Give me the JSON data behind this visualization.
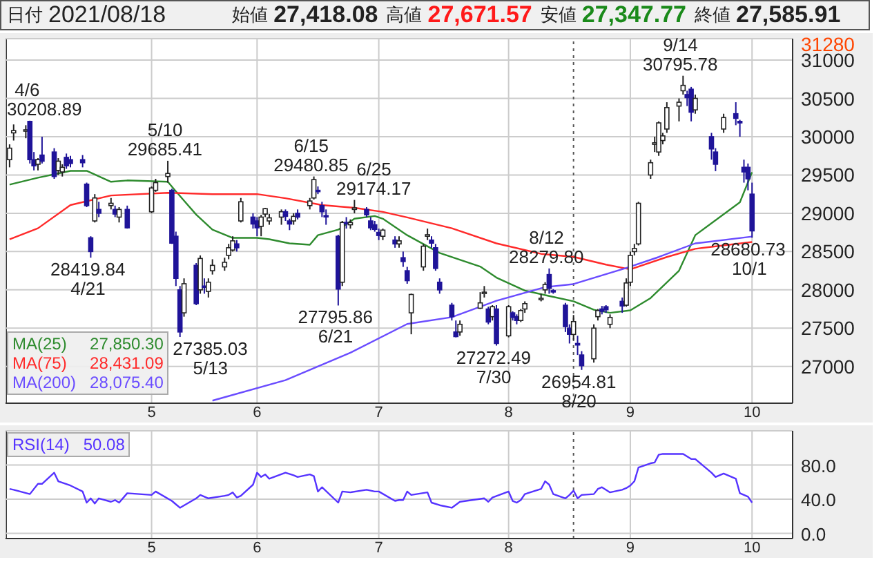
{
  "chart_data": [
    {
      "type": "candlestick",
      "title": "日付 2021/08/18 始値 27,418.08 高値 27,671.57 安値 27,347.77 終値 27,585.91",
      "colors": [
        "#ffffff",
        "#ffffff",
        "#ffffff",
        "#1f1499",
        "#1f1499",
        "#ffffff",
        "#1f1499",
        "#1f1499",
        "#ffffff",
        "#ffffff",
        "#1f1499",
        "#1f1499",
        "#1f1499",
        "#1f1499",
        "#1f1499",
        "#ffffff",
        "#1f1499",
        "#ffffff",
        "#1f1499",
        "#ffffff",
        "#1f1499",
        "#ffffff",
        "#ffffff",
        "#ffffff",
        "#1f1499",
        "#1f1499",
        "#1f1499",
        "#ffffff",
        "#1f1499",
        "#ffffff",
        "#1f1499",
        "#ffffff",
        "#ffffff",
        "#ffffff",
        "#ffffff",
        "#ffffff",
        "#1f1499",
        "#ffffff",
        "#1f1499",
        "#1f1499",
        "#ffffff",
        "#ffffff",
        "#ffffff",
        "#ffffff",
        "#1f1499",
        "#1f1499",
        "#ffffff",
        "#1f1499",
        "#ffffff",
        "#ffffff",
        "#1f1499",
        "#1f1499",
        "#1f1499",
        "#1f1499",
        "#ffffff",
        "#1f1499",
        "#ffffff",
        "#ffffff",
        "#1f1499",
        "#1f1499",
        "#1f1499",
        "#1f1499",
        "#ffffff",
        "#1f1499",
        "#ffffff",
        "#1f1499",
        "#1f1499",
        "#ffffff",
        "#ffffff",
        "#ffffff",
        "#1f1499",
        "#1f1499",
        "#1f1499",
        "#1f1499",
        "#1f1499",
        "#ffffff",
        "#ffffff",
        "#ffffff",
        "#1f1499",
        "#ffffff",
        "#1f1499",
        "#ffffff",
        "#1f1499",
        "#1f1499",
        "#ffffff",
        "#ffffff",
        "#ffffff",
        "#ffffff",
        "#1f1499",
        "#1f1499",
        "#1f1499",
        "#1f1499",
        "#ffffff",
        "#1f1499",
        "#1f1499",
        "#ffffff",
        "#ffffff",
        "#1f1499",
        "#1f1499",
        "#ffffff",
        "#1f1499",
        "#ffffff",
        "#ffffff",
        "#ffffff",
        "#ffffff",
        "#ffffff",
        "#ffffff",
        "#ffffff",
        "#ffffff",
        "#ffffff",
        "#ffffff",
        "#ffffff",
        "#1f1499",
        "#1f1499",
        "#ffffff",
        "#1f1499",
        "#1f1499",
        "#ffffff",
        "#1f1499",
        "#1f1499",
        "#1f1499",
        "#1f1499",
        "#1f1499"
      ],
      "x": [
        "2021-04-01",
        "2021-04-02",
        "2021-04-05",
        "2021-04-06",
        "2021-04-07",
        "2021-04-08",
        "2021-04-09",
        "2021-04-12",
        "2021-04-13",
        "2021-04-14",
        "2021-04-15",
        "2021-04-16",
        "2021-04-19",
        "2021-04-20",
        "2021-04-21",
        "2021-04-22",
        "2021-04-23",
        "2021-04-26",
        "2021-04-27",
        "2021-04-28",
        "2021-04-30",
        "2021-05-06",
        "2021-05-07",
        "2021-05-10",
        "2021-05-11",
        "2021-05-12",
        "2021-05-13",
        "2021-05-14",
        "2021-05-17",
        "2021-05-18",
        "2021-05-19",
        "2021-05-20",
        "2021-05-21",
        "2021-05-24",
        "2021-05-25",
        "2021-05-26",
        "2021-05-27",
        "2021-05-28",
        "2021-05-31",
        "2021-06-01",
        "2021-06-02",
        "2021-06-03",
        "2021-06-04",
        "2021-06-07",
        "2021-06-08",
        "2021-06-09",
        "2021-06-10",
        "2021-06-11",
        "2021-06-14",
        "2021-06-15",
        "2021-06-16",
        "2021-06-17",
        "2021-06-18",
        "2021-06-21",
        "2021-06-22",
        "2021-06-23",
        "2021-06-24",
        "2021-06-25",
        "2021-06-28",
        "2021-06-29",
        "2021-06-30",
        "2021-07-01",
        "2021-07-02",
        "2021-07-05",
        "2021-07-06",
        "2021-07-07",
        "2021-07-08",
        "2021-07-09",
        "2021-07-12",
        "2021-07-13",
        "2021-07-14",
        "2021-07-15",
        "2021-07-16",
        "2021-07-19",
        "2021-07-20",
        "2021-07-21",
        "2021-07-26",
        "2021-07-27",
        "2021-07-28",
        "2021-07-29",
        "2021-07-30",
        "2021-08-02",
        "2021-08-03",
        "2021-08-04",
        "2021-08-05",
        "2021-08-06",
        "2021-08-10",
        "2021-08-11",
        "2021-08-12",
        "2021-08-13",
        "2021-08-16",
        "2021-08-17",
        "2021-08-18",
        "2021-08-19",
        "2021-08-20",
        "2021-08-23",
        "2021-08-24",
        "2021-08-25",
        "2021-08-26",
        "2021-08-27",
        "2021-08-30",
        "2021-08-31",
        "2021-09-01",
        "2021-09-02",
        "2021-09-03",
        "2021-09-06",
        "2021-09-07",
        "2021-09-08",
        "2021-09-09",
        "2021-09-10",
        "2021-09-13",
        "2021-09-14",
        "2021-09-15",
        "2021-09-16",
        "2021-09-17",
        "2021-09-21",
        "2021-09-22",
        "2021-09-24",
        "2021-09-27",
        "2021-09-28",
        "2021-09-29",
        "2021-09-30",
        "2021-10-01"
      ],
      "ohlc": [
        [
          29700,
          29900,
          29600,
          29850
        ],
        [
          30050,
          30160,
          29950,
          30080
        ],
        [
          30080,
          30150,
          29980,
          30090
        ],
        [
          30200,
          30208.89,
          29650,
          29700
        ],
        [
          29700,
          29800,
          29560,
          29620
        ],
        [
          29640,
          29720,
          29560,
          29700
        ],
        [
          29760,
          30000,
          29650,
          29680
        ],
        [
          29800,
          29850,
          29450,
          29480
        ],
        [
          29560,
          29720,
          29500,
          29680
        ],
        [
          29540,
          29640,
          29480,
          29600
        ],
        [
          29730,
          29780,
          29580,
          29620
        ],
        [
          29700,
          29750,
          29600,
          29650
        ],
        [
          29700,
          29760,
          29600,
          29660
        ],
        [
          29380,
          29400,
          29080,
          29100
        ],
        [
          28680,
          28700,
          28419.84,
          28500
        ],
        [
          28900,
          29250,
          28880,
          29200
        ],
        [
          29050,
          29150,
          28950,
          29000
        ],
        [
          29100,
          29200,
          29050,
          29130
        ],
        [
          29050,
          29100,
          28950,
          28990
        ],
        [
          28950,
          29080,
          28880,
          29050
        ],
        [
          29050,
          29100,
          28800,
          28810
        ],
        [
          29020,
          29350,
          29000,
          29330
        ],
        [
          29300,
          29450,
          29280,
          29400
        ],
        [
          29480,
          29685.41,
          29400,
          29520
        ],
        [
          29300,
          29320,
          28600,
          28610
        ],
        [
          28700,
          28760,
          28050,
          28150
        ],
        [
          28000,
          28050,
          27385.03,
          27450
        ],
        [
          27700,
          28150,
          27650,
          28080
        ],
        [
          28320,
          28350,
          27800,
          27820
        ],
        [
          28000,
          28450,
          27950,
          28410
        ],
        [
          28050,
          28150,
          27950,
          28040
        ],
        [
          27980,
          28150,
          27900,
          28100
        ],
        [
          28250,
          28400,
          28200,
          28320
        ],
        [
          28300,
          28420,
          28250,
          28360
        ],
        [
          28450,
          28600,
          28400,
          28550
        ],
        [
          28520,
          28700,
          28500,
          28640
        ],
        [
          28600,
          28650,
          28500,
          28550
        ],
        [
          28900,
          29200,
          28880,
          29150
        ],
        [
          28950,
          29000,
          28800,
          28860
        ],
        [
          28900,
          28950,
          28700,
          28810
        ],
        [
          28830,
          28980,
          28700,
          28950
        ],
        [
          28990,
          29070,
          28950,
          29060
        ],
        [
          28900,
          28990,
          28850,
          28940
        ],
        [
          28950,
          29050,
          28850,
          29020
        ],
        [
          29020,
          29050,
          28900,
          28960
        ],
        [
          28900,
          28930,
          28780,
          28860
        ],
        [
          28900,
          29000,
          28850,
          28960
        ],
        [
          29000,
          29050,
          28920,
          28950
        ],
        [
          29100,
          29200,
          29050,
          29160
        ],
        [
          29200,
          29480.85,
          29180,
          29440
        ],
        [
          29300,
          29350,
          29250,
          29290
        ],
        [
          29100,
          29150,
          28950,
          29020
        ],
        [
          28970,
          29050,
          28850,
          28960
        ],
        [
          28700,
          28720,
          27795.86,
          28010
        ],
        [
          28100,
          28900,
          28050,
          28880
        ],
        [
          28880,
          28950,
          28800,
          28870
        ],
        [
          28850,
          28920,
          28800,
          28880
        ],
        [
          29050,
          29174.17,
          29000,
          29070
        ],
        [
          29050,
          29080,
          28950,
          28980
        ],
        [
          28900,
          28950,
          28780,
          28810
        ],
        [
          28850,
          28900,
          28760,
          28790
        ],
        [
          28750,
          28800,
          28650,
          28710
        ],
        [
          28700,
          28800,
          28650,
          28780
        ],
        [
          28650,
          28700,
          28550,
          28600
        ],
        [
          28600,
          28700,
          28550,
          28640
        ],
        [
          28420,
          28500,
          28300,
          28370
        ],
        [
          28250,
          28300,
          28080,
          28120
        ],
        [
          27700,
          27950,
          27420,
          27940
        ],
        [
          28300,
          28600,
          28250,
          28570
        ],
        [
          28700,
          28800,
          28650,
          28720
        ],
        [
          28650,
          28700,
          28550,
          28610
        ],
        [
          28550,
          28600,
          28250,
          28280
        ],
        [
          28100,
          28150,
          27950,
          28000
        ],
        [
          27800,
          27830,
          27600,
          27650
        ],
        [
          27450,
          27600,
          27380,
          27390
        ],
        [
          27450,
          27600,
          27400,
          27550
        ],
        [
          27760,
          27970,
          27750,
          27830
        ],
        [
          27960,
          28050,
          27900,
          27970
        ],
        [
          27750,
          27780,
          27550,
          27580
        ],
        [
          27650,
          27800,
          27600,
          27780
        ],
        [
          27750,
          27800,
          27272.49,
          27300
        ],
        [
          27400,
          27800,
          27380,
          27780
        ],
        [
          27700,
          27720,
          27600,
          27640
        ],
        [
          27650,
          27680,
          27550,
          27600
        ],
        [
          27600,
          27750,
          27580,
          27730
        ],
        [
          27750,
          27850,
          27700,
          27820
        ],
        [
          27880,
          27950,
          27850,
          27890
        ],
        [
          28000,
          28100,
          27950,
          28070
        ],
        [
          28200,
          28279.8,
          27950,
          28020
        ],
        [
          27990,
          28010,
          27950,
          27980
        ],
        [
          27800,
          27830,
          27450,
          27520
        ],
        [
          27500,
          27550,
          27300,
          27420
        ],
        [
          27418.08,
          27671.57,
          27347.77,
          27585.91
        ],
        [
          27300,
          27400,
          27150,
          27280
        ],
        [
          27150,
          27200,
          26954.81,
          27010
        ],
        [
          27100,
          27550,
          27050,
          27500
        ],
        [
          27650,
          27750,
          27600,
          27730
        ],
        [
          27750,
          27790,
          27680,
          27720
        ],
        [
          27780,
          27800,
          27700,
          27740
        ],
        [
          27550,
          27680,
          27500,
          27640
        ],
        [
          27850,
          27900,
          27700,
          27790
        ],
        [
          27800,
          28150,
          27780,
          28090
        ],
        [
          28100,
          28500,
          28050,
          28450
        ],
        [
          28500,
          28600,
          28450,
          28540
        ],
        [
          28600,
          29150,
          28580,
          29130
        ],
        [
          29500,
          29700,
          29450,
          29660
        ],
        [
          29900,
          30000,
          29800,
          29920
        ],
        [
          29800,
          30200,
          29750,
          30180
        ],
        [
          29950,
          30050,
          29900,
          30010
        ],
        [
          30100,
          30450,
          30050,
          30380
        ],
        [
          30400,
          30500,
          30200,
          30450
        ],
        [
          30600,
          30795.78,
          30550,
          30670
        ],
        [
          30550,
          30600,
          30400,
          30510
        ],
        [
          30620,
          30650,
          30200,
          30320
        ],
        [
          30350,
          30550,
          30300,
          30500
        ],
        [
          30000,
          30050,
          29700,
          29840
        ],
        [
          29800,
          29850,
          29550,
          29640
        ],
        [
          30100,
          30300,
          30050,
          30250
        ],
        [
          30300,
          30450,
          30150,
          30240
        ],
        [
          30200,
          30220,
          30000,
          30180
        ],
        [
          29600,
          29700,
          29400,
          29540
        ],
        [
          29600,
          29650,
          29300,
          29450
        ],
        [
          29250,
          29400,
          28680.73,
          28770
        ]
      ],
      "series": [
        {
          "type": "line",
          "name": "MA(25)",
          "color": "#2e8b2e",
          "x": [
            "2021-04-01",
            "2021-04-08",
            "2021-04-16",
            "2021-04-20",
            "2021-04-26",
            "2021-04-30",
            "2021-05-10",
            "2021-05-12",
            "2021-05-17",
            "2021-05-21",
            "2021-05-26",
            "2021-06-01",
            "2021-06-04",
            "2021-06-09",
            "2021-06-14",
            "2021-06-16",
            "2021-06-21",
            "2021-06-25",
            "2021-06-30",
            "2021-07-02",
            "2021-07-08",
            "2021-07-16",
            "2021-07-26",
            "2021-07-30",
            "2021-08-06",
            "2021-08-12",
            "2021-08-18",
            "2021-08-23",
            "2021-08-27",
            "2021-09-01",
            "2021-09-06",
            "2021-09-13",
            "2021-09-17",
            "2021-09-28",
            "2021-10-01"
          ],
          "values": [
            29375,
            29464,
            29554,
            29554,
            29411,
            29429,
            29411,
            29286,
            28982,
            28786,
            28679,
            28679,
            28661,
            28607,
            28589,
            28714,
            28786,
            28929,
            28964,
            28929,
            28714,
            28482,
            28304,
            28160,
            27990,
            27920,
            27850.3,
            27740,
            27700,
            27732,
            27893,
            28250,
            28714,
            29143,
            29536
          ]
        },
        {
          "type": "line",
          "name": "MA(75)",
          "color": "#ff2a2a",
          "x": [
            "2021-04-01",
            "2021-04-08",
            "2021-04-16",
            "2021-04-26",
            "2021-05-10",
            "2021-05-21",
            "2021-06-01",
            "2021-06-08",
            "2021-06-17",
            "2021-06-25",
            "2021-07-02",
            "2021-07-08",
            "2021-07-19",
            "2021-07-30",
            "2021-08-10",
            "2021-08-18",
            "2021-08-26",
            "2021-09-01",
            "2021-09-10",
            "2021-09-17",
            "2021-10-01"
          ],
          "values": [
            28661,
            28804,
            29107,
            29232,
            29268,
            29250,
            29250,
            29196,
            29107,
            29071,
            29018,
            28946,
            28804,
            28607,
            28470,
            28431.09,
            28330,
            28268,
            28429,
            28536,
            28625
          ]
        },
        {
          "type": "line",
          "name": "MA(200)",
          "color": "#6a4cff",
          "x": [
            "2021-05-21",
            "2021-06-08",
            "2021-06-24",
            "2021-07-08",
            "2021-07-19",
            "2021-07-30",
            "2021-08-11",
            "2021-08-18",
            "2021-08-31",
            "2021-09-08",
            "2021-09-17",
            "2021-10-01"
          ],
          "values": [
            26554,
            26821,
            27179,
            27554,
            27643,
            27857,
            28036,
            28075.4,
            28286,
            28429,
            28607,
            28696
          ]
        }
      ],
      "xlim": [
        "2021-03-31",
        "2021-10-11"
      ],
      "xticks": [
        {
          "value": "2021-05-06",
          "label": "5"
        },
        {
          "value": "2021-06-01",
          "label": "6"
        },
        {
          "value": "2021-07-01",
          "label": "7"
        },
        {
          "value": "2021-08-02",
          "label": "8"
        },
        {
          "value": "2021-09-01",
          "label": "9"
        },
        {
          "value": "2021-10-01",
          "label": "10"
        }
      ],
      "ylim": [
        26520,
        31280
      ],
      "yticks": [
        27000,
        27500,
        28000,
        28500,
        29000,
        29500,
        30000,
        30500,
        31000,
        31280
      ],
      "grid": true,
      "legend": "bottom left",
      "annotations": [
        "27,850.30",
        "28,431.09",
        "28,075.40",
        {
          "text": "4/6\n30208.89",
          "x": "2021-04-06",
          "y": 30208.89
        },
        {
          "text": "28419.84\n4/21",
          "x": "2021-04-21",
          "y": 28419.84
        },
        {
          "text": "5/10\n29685.41",
          "x": "2021-05-10",
          "y": 29685.41
        },
        {
          "text": "27385.03\n5/13",
          "x": "2021-05-13",
          "y": 27385.03
        },
        {
          "text": "6/15\n29480.85",
          "x": "2021-06-15",
          "y": 29480.85
        },
        {
          "text": "27795.86\n6/21",
          "x": "2021-06-21",
          "y": 27795.86
        },
        {
          "text": "6/25\n29174.17",
          "x": "2021-06-25",
          "y": 29174.17
        },
        {
          "text": "27272.49\n7/30",
          "x": "2021-07-30",
          "y": 27272.49
        },
        {
          "text": "8/12\n28279.80",
          "x": "2021-08-12",
          "y": 28279.8
        },
        {
          "text": "26954.81\n8/20",
          "x": "2021-08-20",
          "y": 26954.81
        },
        {
          "text": "9/14\n30795.78",
          "x": "2021-09-14",
          "y": 30795.78
        },
        {
          "text": "28680.73\n10/1",
          "x": "2021-10-01",
          "y": 28680.73
        }
      ],
      "ref_lines": [
        {
          "axis": "x",
          "value": "2021-08-18",
          "line_style": "dotted",
          "color": "#555555"
        }
      ]
    },
    {
      "type": "line",
      "series": [
        {
          "name": "RSI(14)",
          "color": "#5533ff",
          "x": [
            "2021-04-01",
            "2021-04-02",
            "2021-04-06",
            "2021-04-08",
            "2021-04-09",
            "2021-04-12",
            "2021-04-13",
            "2021-04-16",
            "2021-04-19",
            "2021-04-20",
            "2021-04-21",
            "2021-04-22",
            "2021-04-23",
            "2021-04-26",
            "2021-04-27",
            "2021-04-28",
            "2021-04-30",
            "2021-05-06",
            "2021-05-07",
            "2021-05-11",
            "2021-05-12",
            "2021-05-13",
            "2021-05-17",
            "2021-05-18",
            "2021-05-20",
            "2021-05-24",
            "2021-05-25",
            "2021-05-26",
            "2021-05-27",
            "2021-05-28",
            "2021-05-31",
            "2021-06-01",
            "2021-06-02",
            "2021-06-03",
            "2021-06-04",
            "2021-06-08",
            "2021-06-10",
            "2021-06-11",
            "2021-06-14",
            "2021-06-15",
            "2021-06-16",
            "2021-06-17",
            "2021-06-21",
            "2021-06-22",
            "2021-06-24",
            "2021-06-28",
            "2021-06-30",
            "2021-07-01",
            "2021-07-05",
            "2021-07-06",
            "2021-07-07",
            "2021-07-08",
            "2021-07-09",
            "2021-07-13",
            "2021-07-14",
            "2021-07-16",
            "2021-07-19",
            "2021-07-21",
            "2021-07-27",
            "2021-07-28",
            "2021-07-29",
            "2021-08-02",
            "2021-08-03",
            "2021-08-04",
            "2021-08-05",
            "2021-08-06",
            "2021-08-10",
            "2021-08-11",
            "2021-08-12",
            "2021-08-13",
            "2021-08-16",
            "2021-08-17",
            "2021-08-18",
            "2021-08-19",
            "2021-08-20",
            "2021-08-23",
            "2021-08-24",
            "2021-08-25",
            "2021-08-26",
            "2021-08-27",
            "2021-08-30",
            "2021-08-31",
            "2021-09-01",
            "2021-09-02",
            "2021-09-03",
            "2021-09-06",
            "2021-09-07",
            "2021-09-08",
            "2021-09-09",
            "2021-09-14",
            "2021-09-16",
            "2021-09-17",
            "2021-09-21",
            "2021-09-22",
            "2021-09-24",
            "2021-09-27",
            "2021-09-28",
            "2021-09-30",
            "2021-10-01"
          ],
          "values": [
            52,
            51,
            46,
            58,
            58,
            71,
            61,
            56,
            49,
            36,
            41,
            35,
            41,
            37,
            39,
            36,
            47,
            45,
            49,
            38,
            34,
            30,
            41,
            45,
            41,
            44,
            45,
            48,
            42,
            44,
            57,
            71,
            66,
            69,
            64,
            71,
            68,
            66,
            69,
            67,
            49,
            54,
            36,
            49,
            48,
            51,
            49,
            49,
            38,
            39,
            39,
            49,
            45,
            48,
            36,
            33,
            30,
            37,
            41,
            37,
            42,
            49,
            38,
            36,
            39,
            46,
            52,
            61,
            57,
            46,
            41,
            45,
            50.08,
            41,
            45,
            46,
            52,
            54,
            51,
            48,
            51,
            53,
            56,
            61,
            77,
            82,
            83,
            92,
            93,
            93,
            87,
            87,
            71,
            66,
            70,
            64,
            47,
            43,
            36
          ]
        }
      ],
      "xlim": [
        "2021-03-31",
        "2021-10-11"
      ],
      "xticks": [
        {
          "value": "2021-05-06",
          "label": "5"
        },
        {
          "value": "2021-06-01",
          "label": "6"
        },
        {
          "value": "2021-07-01",
          "label": "7"
        },
        {
          "value": "2021-08-02",
          "label": "8"
        },
        {
          "value": "2021-09-01",
          "label": "9"
        },
        {
          "value": "2021-10-01",
          "label": "10"
        }
      ],
      "ylim": [
        -6,
        120
      ],
      "yticks": [
        {
          "value": 0,
          "label": "0.0"
        },
        {
          "value": 40,
          "label": "40.0"
        },
        {
          "value": 80,
          "label": "80.0"
        }
      ],
      "grid": true,
      "legend": "top left",
      "annotations": [
        "50.08"
      ],
      "ref_lines": [
        {
          "axis": "x",
          "value": "2021-08-18",
          "line_style": "dotted",
          "color": "#555555"
        }
      ]
    }
  ]
}
